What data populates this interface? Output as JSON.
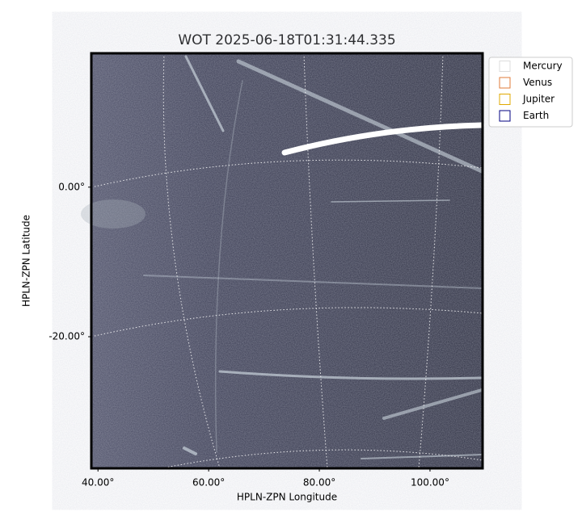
{
  "chart_data": {
    "type": "image",
    "title": "WOT 2025-06-18T01:31:44.335",
    "xlabel": "HPLN-ZPN Longitude",
    "ylabel": "HPLN-ZPN Latitude",
    "xlim": [
      38.8,
      109.5
    ],
    "ylim": [
      -37.6,
      17.9
    ],
    "xticks": [
      {
        "value": 40,
        "label": "40.00°"
      },
      {
        "value": 60,
        "label": "60.00°"
      },
      {
        "value": 80,
        "label": "80.00°"
      },
      {
        "value": 100,
        "label": "100.00°"
      }
    ],
    "yticks": [
      {
        "value": 0,
        "label": "0.00°"
      },
      {
        "value": -20,
        "label": "-20.00°"
      }
    ],
    "grid": true,
    "legend_position": "outside-right",
    "series": [
      {
        "name": "Mercury",
        "color": "#dddddd"
      },
      {
        "name": "Venus",
        "color": "#e07b39"
      },
      {
        "name": "Jupiter",
        "color": "#e0a800"
      },
      {
        "name": "Earth",
        "color": "#000080"
      }
    ]
  }
}
